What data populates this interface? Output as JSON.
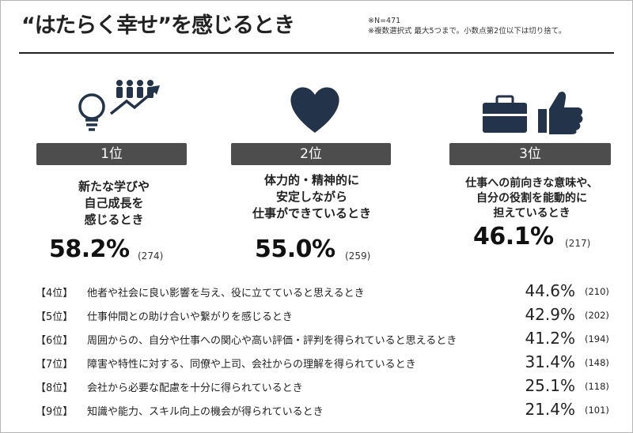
{
  "title": "“はたらく幸せ”を感じるとき",
  "notes": [
    "※N=471",
    "※複数選択式 最大5つまで。小数点第2位以下は切り捨て。"
  ],
  "icons": {
    "rank1": [
      "lightbulb-icon",
      "people-growth-arrow-icon"
    ],
    "rank2": [
      "heart-icon"
    ],
    "rank3": [
      "briefcase-icon",
      "thumbs-up-icon"
    ]
  },
  "colors": {
    "icon": "#23344a",
    "rank_bar": "#4d4d4d",
    "text": "#222222"
  },
  "chart_data": {
    "type": "table",
    "top": [
      {
        "rank": "1位",
        "lines": [
          "新たな学びや",
          "自己成長を",
          "感じるとき"
        ],
        "percent": "58.2%",
        "count": "(274)"
      },
      {
        "rank": "2位",
        "lines": [
          "体力的・精神的に",
          "安定しながら",
          "仕事ができているとき"
        ],
        "percent": "55.0%",
        "count": "(259)"
      },
      {
        "rank": "3位",
        "lines": [
          "仕事への前向きな意味や、",
          "自分の役割を能動的に",
          "担えているとき"
        ],
        "percent": "46.1%",
        "count": "(217)"
      }
    ],
    "rows": [
      {
        "rank": "【4位】",
        "label": "他者や社会に良い影響を与え、役に立てていると思えるとき",
        "percent": "44.6%",
        "count": "(210)"
      },
      {
        "rank": "【5位】",
        "label": "仕事仲間との助け合いや繋がりを感じるとき",
        "percent": "42.9%",
        "count": "(202)"
      },
      {
        "rank": "【6位】",
        "label": "周囲からの、自分や仕事への関心や高い評価・評判を得られていると思えるとき",
        "percent": "41.2%",
        "count": "(194)"
      },
      {
        "rank": "【7位】",
        "label": "障害や特性に対する、同僚や上司、会社からの理解を得られているとき",
        "percent": "31.4%",
        "count": "(148)"
      },
      {
        "rank": "【8位】",
        "label": "会社から必要な配慮を十分に得られているとき",
        "percent": "25.1%",
        "count": "(118)"
      },
      {
        "rank": "【9位】",
        "label": "知識や能力、スキル向上の機会が得られているとき",
        "percent": "21.4%",
        "count": "(101)"
      }
    ]
  }
}
